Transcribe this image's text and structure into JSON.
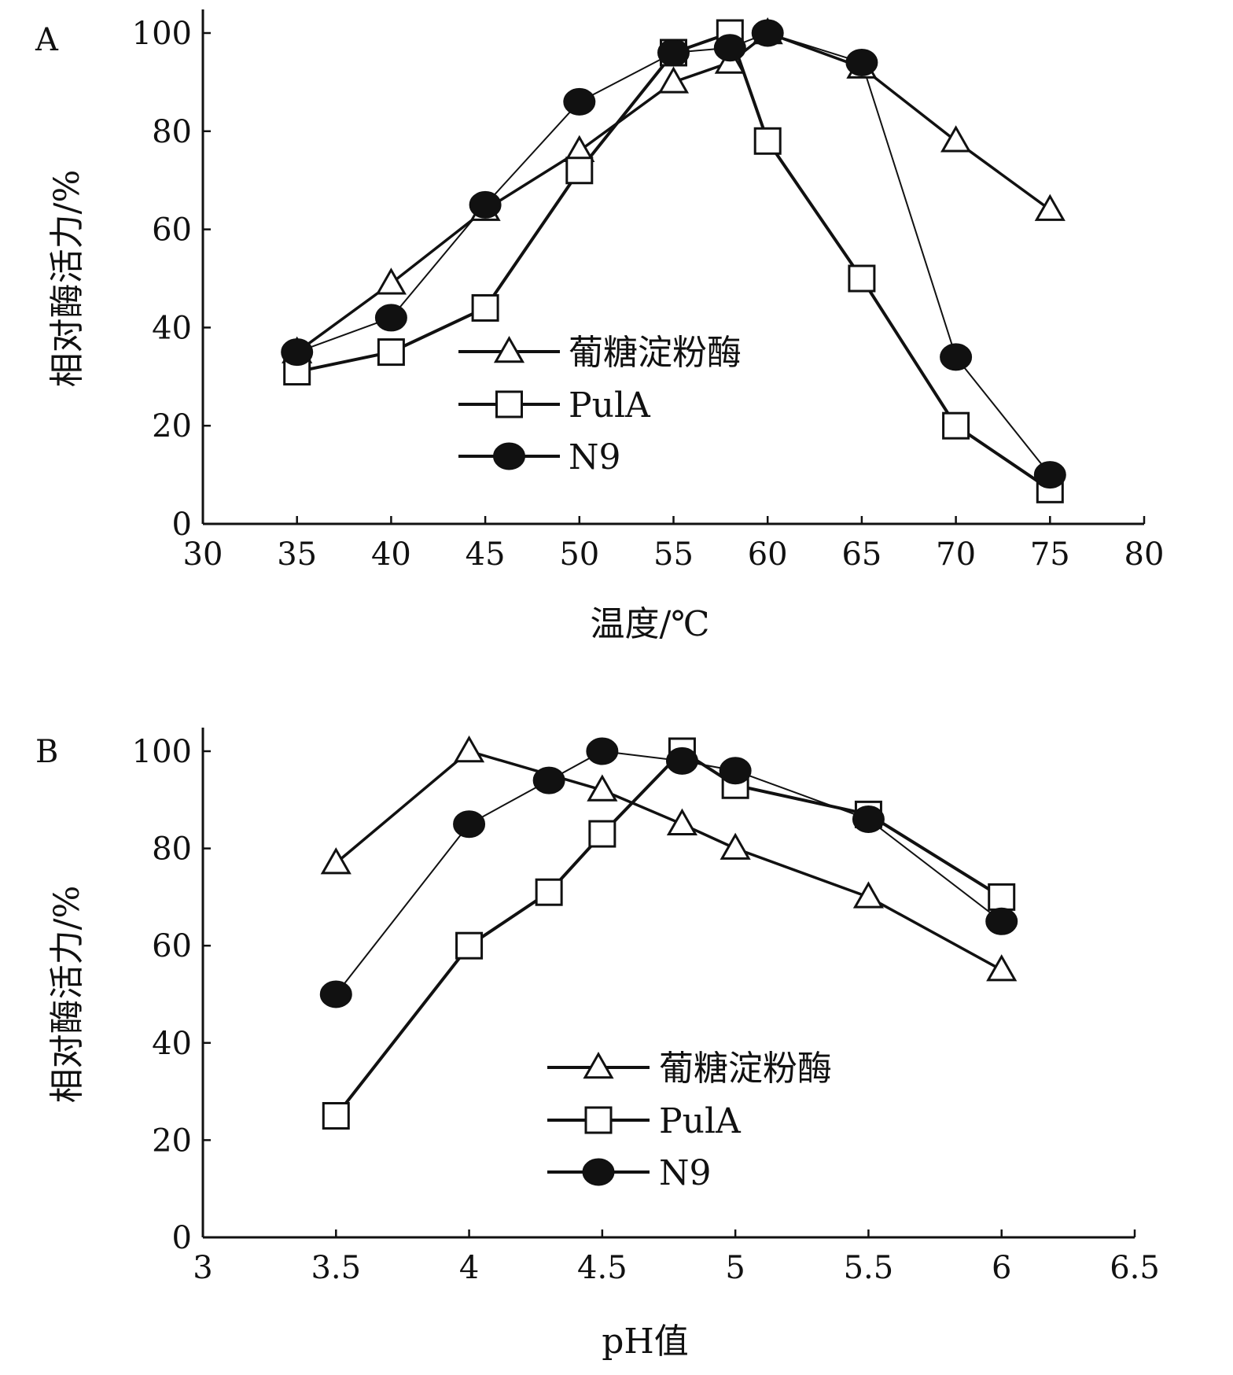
{
  "chart_data": [
    {
      "type": "line",
      "panel_label": "A",
      "xlabel": "温度/℃",
      "ylabel": "相对酶活力/%",
      "xlim": [
        30,
        80
      ],
      "ylim": [
        0,
        100
      ],
      "xticks": [
        30,
        35,
        40,
        45,
        50,
        55,
        60,
        65,
        70,
        75,
        80
      ],
      "yticks": [
        0,
        20,
        40,
        60,
        80,
        100
      ],
      "legend_position": "center",
      "series": [
        {
          "name": "葡糖淀粉酶",
          "marker": "triangle",
          "x": [
            35,
            40,
            45,
            50,
            55,
            58,
            60,
            65,
            70,
            75
          ],
          "y": [
            35,
            49,
            64,
            76,
            90,
            94,
            100,
            93,
            78,
            64
          ]
        },
        {
          "name": "PulA",
          "marker": "square",
          "x": [
            35,
            40,
            45,
            50,
            55,
            58,
            60,
            65,
            70,
            75
          ],
          "y": [
            31,
            35,
            44,
            72,
            96,
            100,
            78,
            50,
            20,
            7
          ]
        },
        {
          "name": "N9",
          "marker": "circle",
          "x": [
            35,
            40,
            45,
            50,
            55,
            58,
            60,
            65,
            70,
            75
          ],
          "y": [
            35,
            42,
            65,
            86,
            96,
            97,
            100,
            94,
            34,
            10
          ]
        }
      ]
    },
    {
      "type": "line",
      "panel_label": "B",
      "xlabel": "pH值",
      "ylabel": "相对酶活力/%",
      "xlim": [
        3,
        6.5
      ],
      "ylim": [
        0,
        100
      ],
      "xticks": [
        3,
        3.5,
        4,
        4.5,
        5,
        5.5,
        6,
        6.5
      ],
      "yticks": [
        0,
        20,
        40,
        60,
        80,
        100
      ],
      "legend_position": "center-bottom",
      "series": [
        {
          "name": "葡糖淀粉酶",
          "marker": "triangle",
          "x": [
            3.5,
            4,
            4.5,
            4.8,
            5,
            5.5,
            6
          ],
          "y": [
            77,
            100,
            92,
            85,
            80,
            70,
            55
          ]
        },
        {
          "name": "PulA",
          "marker": "square",
          "x": [
            3.5,
            4,
            4.3,
            4.5,
            4.8,
            5,
            5.5,
            6
          ],
          "y": [
            25,
            60,
            71,
            83,
            100,
            93,
            87,
            70
          ]
        },
        {
          "name": "N9",
          "marker": "circle",
          "x": [
            3.5,
            4,
            4.3,
            4.5,
            4.8,
            5,
            5.5,
            6
          ],
          "y": [
            50,
            85,
            94,
            100,
            98,
            96,
            86,
            65
          ]
        }
      ]
    }
  ]
}
